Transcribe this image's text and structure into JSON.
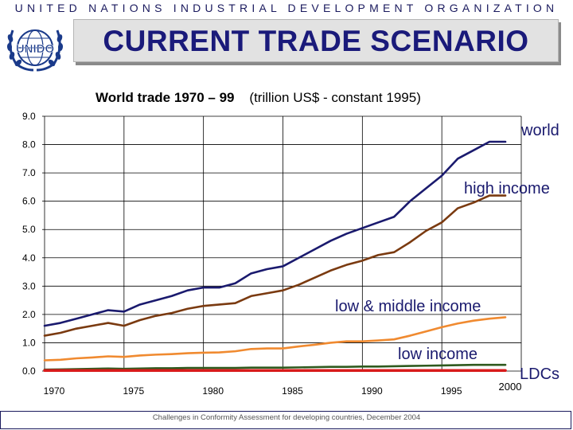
{
  "header": {
    "organization": "UNITED NATIONS INDUSTRIAL DEVELOPMENT ORGANIZATION",
    "logo_text": "UNIDO",
    "logo_icon": "un-emblem-icon",
    "title": "CURRENT TRADE SCENARIO"
  },
  "footer": {
    "text": "Challenges in Conformity Assessment for developing countries, December 2004"
  },
  "colors": {
    "world": "#1a1a6e",
    "high_income": "#7a3a10",
    "low_middle_income": "#f08a30",
    "low_income": "#2f5a1e",
    "ldcs": "#d81b1b",
    "title_text": "#1a1a7a",
    "grid": "#000000"
  },
  "chart_data": {
    "type": "line",
    "title_main": "World trade 1970 – 99",
    "title_unit": "(trillion US$ - constant 1995)",
    "xlabel": "",
    "ylabel": "",
    "xlim": [
      1970,
      2000
    ],
    "ylim": [
      0,
      9
    ],
    "grid": true,
    "x_tick_labels": [
      "1970",
      "1975",
      "1980",
      "1985",
      "1990",
      "1995",
      "2000"
    ],
    "y_tick_labels": [
      "0.0",
      "1.0",
      "2.0",
      "3.0",
      "4.0",
      "5.0",
      "6.0",
      "7.0",
      "8.0",
      "9.0"
    ],
    "x": [
      1970,
      1971,
      1972,
      1973,
      1974,
      1975,
      1976,
      1977,
      1978,
      1979,
      1980,
      1981,
      1982,
      1983,
      1984,
      1985,
      1986,
      1987,
      1988,
      1989,
      1990,
      1991,
      1992,
      1993,
      1994,
      1995,
      1996,
      1997,
      1998,
      1999
    ],
    "series": [
      {
        "name": "world",
        "color_key": "world",
        "values": [
          1.6,
          1.7,
          1.85,
          2.0,
          2.15,
          2.1,
          2.35,
          2.5,
          2.65,
          2.85,
          2.95,
          2.95,
          3.1,
          3.45,
          3.6,
          3.7,
          4.0,
          4.3,
          4.6,
          4.85,
          5.05,
          5.25,
          5.45,
          6.0,
          6.45,
          6.9,
          7.5,
          7.8,
          8.1,
          8.1
        ]
      },
      {
        "name": "high income",
        "color_key": "high_income",
        "values": [
          1.25,
          1.35,
          1.5,
          1.6,
          1.7,
          1.6,
          1.8,
          1.95,
          2.05,
          2.2,
          2.3,
          2.35,
          2.4,
          2.65,
          2.75,
          2.85,
          3.05,
          3.3,
          3.55,
          3.75,
          3.9,
          4.1,
          4.2,
          4.55,
          4.95,
          5.25,
          5.75,
          5.95,
          6.2,
          6.2
        ]
      },
      {
        "name": "low & middle income",
        "color_key": "low_middle_income",
        "values": [
          0.38,
          0.4,
          0.45,
          0.48,
          0.52,
          0.5,
          0.55,
          0.58,
          0.6,
          0.63,
          0.65,
          0.66,
          0.7,
          0.78,
          0.8,
          0.8,
          0.87,
          0.93,
          1.0,
          1.05,
          1.05,
          1.08,
          1.12,
          1.25,
          1.4,
          1.55,
          1.68,
          1.78,
          1.85,
          1.9
        ]
      },
      {
        "name": "low income",
        "color_key": "low_income",
        "values": [
          0.05,
          0.06,
          0.07,
          0.08,
          0.09,
          0.08,
          0.09,
          0.1,
          0.1,
          0.11,
          0.11,
          0.11,
          0.11,
          0.12,
          0.12,
          0.12,
          0.13,
          0.14,
          0.15,
          0.15,
          0.16,
          0.16,
          0.17,
          0.18,
          0.19,
          0.2,
          0.21,
          0.22,
          0.22,
          0.22
        ]
      },
      {
        "name": "LDCs",
        "color_key": "ldcs",
        "values": [
          0.02,
          0.02,
          0.02,
          0.02,
          0.02,
          0.02,
          0.02,
          0.02,
          0.02,
          0.02,
          0.02,
          0.02,
          0.02,
          0.02,
          0.02,
          0.02,
          0.02,
          0.02,
          0.02,
          0.02,
          0.02,
          0.02,
          0.02,
          0.02,
          0.02,
          0.02,
          0.02,
          0.02,
          0.02,
          0.02
        ]
      }
    ]
  }
}
